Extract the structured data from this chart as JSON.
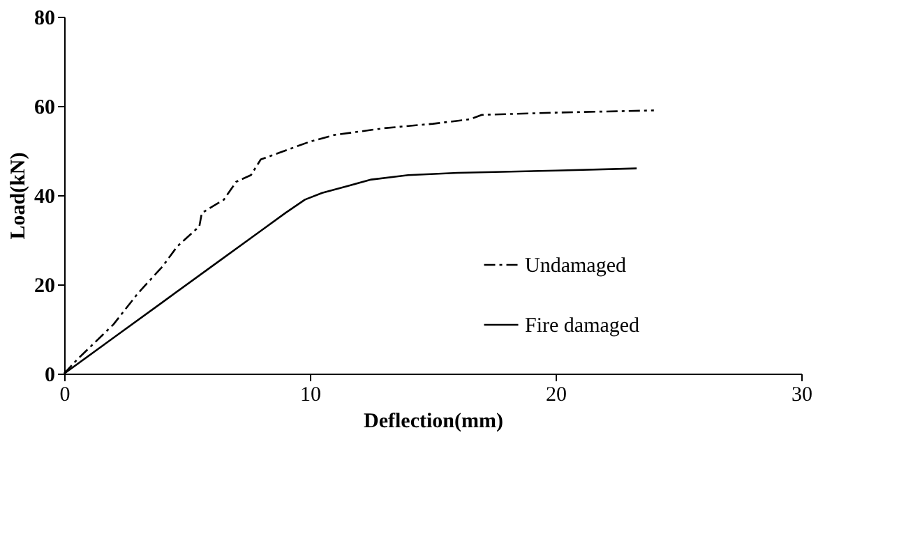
{
  "chart_data": {
    "type": "line",
    "xlabel": "Deflection(mm)",
    "ylabel": "Load(kN)",
    "xlim": [
      0,
      30
    ],
    "ylim": [
      0,
      80
    ],
    "xticks": [
      0,
      10,
      20,
      30
    ],
    "yticks": [
      0,
      20,
      40,
      60,
      80
    ],
    "grid": false,
    "legend": "right",
    "marker": "none",
    "series": [
      {
        "name": "Undamaged",
        "color": "#000000",
        "line_style": "dashed",
        "x": [
          0,
          0.5,
          2,
          3,
          4,
          4.6,
          5.5,
          5.6,
          6.5,
          7,
          7.6,
          8,
          9,
          10,
          11,
          13,
          15,
          16.5,
          17,
          20,
          24
        ],
        "values": [
          0,
          3,
          11,
          18,
          24,
          28.5,
          33,
          36,
          39,
          43,
          44.5,
          48,
          50,
          52,
          53.5,
          55,
          56,
          57,
          58,
          58.5,
          59
        ]
      },
      {
        "name": "Fire damaged",
        "color": "#000000",
        "line_style": "solid",
        "x": [
          0,
          2,
          4,
          6,
          8,
          9,
          9.8,
          10.5,
          11.5,
          12.5,
          14,
          16,
          20,
          23.3
        ],
        "values": [
          0,
          8,
          16,
          24,
          32,
          36,
          39,
          40.5,
          42,
          43.5,
          44.5,
          45,
          45.5,
          46
        ]
      }
    ]
  }
}
